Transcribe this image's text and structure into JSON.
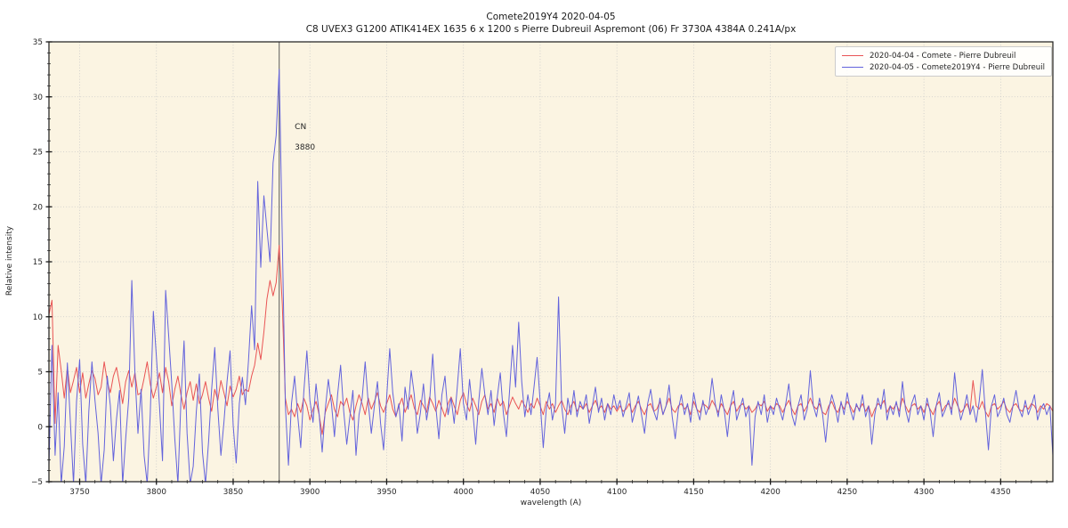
{
  "chart_data": {
    "type": "line",
    "title": "Comete2019Y4 2020-04-05",
    "subtitle": "C8 UVEX3 G1200 ATIK414EX 1635 6 x 1200 s Pierre Dubreuil Aspremont (06) Fr 3730A 4384A 0.241A/px",
    "xlabel": "wavelength (A)",
    "ylabel": "Relative intensity",
    "xlim": [
      3730,
      4384
    ],
    "ylim": [
      -5,
      35
    ],
    "xticks": {
      "values": [
        3750,
        3800,
        3850,
        3900,
        3950,
        4000,
        4050,
        4100,
        4150,
        4200,
        4250,
        4300,
        4350
      ],
      "labels": [
        "3750",
        "3800",
        "3850",
        "3900",
        "3950",
        "4000",
        "4050",
        "4100",
        "4150",
        "4200",
        "4250",
        "4300",
        "4350"
      ],
      "minor_step": 10
    },
    "yticks": {
      "values": [
        -5,
        0,
        5,
        10,
        15,
        20,
        25,
        30,
        35
      ],
      "labels": [
        "−5",
        "0",
        "5",
        "10",
        "15",
        "20",
        "25",
        "30",
        "35"
      ],
      "minor_step": 1
    },
    "grid": true,
    "grid_style": "dotted",
    "colors": {
      "plot_background": "#fbf4e2",
      "grid": "#c9c9c9",
      "spine": "#1a1a1a",
      "annotation_line": "#5a5a5a",
      "tick_label": "#262626"
    },
    "annotation": {
      "line1": "CN",
      "line2": "3880",
      "x": 3880,
      "y_data": 28.6
    },
    "legend": {
      "position": "top-right",
      "entries": [
        {
          "label": "2020-04-04 - Comete - Pierre Dubreuil",
          "color": "#e95454"
        },
        {
          "label": "2020-04-05 - Comete2019Y4 - Pierre Dubreuil",
          "color": "#6363dc"
        }
      ]
    },
    "series": [
      {
        "name": "2020-04-04 - Comete - Pierre Dubreuil",
        "color": "#e95454",
        "x_start": 3730,
        "x_step": 2,
        "values": [
          10.2,
          11.5,
          0.3,
          7.4,
          5.1,
          2.6,
          5.4,
          3.1,
          4.2,
          5.4,
          3.1,
          4.9,
          2.6,
          3.9,
          5.1,
          4.4,
          2.9,
          3.6,
          5.9,
          4.1,
          3.1,
          4.6,
          5.4,
          3.9,
          2.1,
          4.1,
          5.1,
          3.6,
          4.9,
          2.9,
          3.1,
          4.4,
          5.9,
          3.9,
          2.6,
          3.6,
          4.9,
          3.1,
          5.4,
          4.1,
          1.9,
          3.4,
          4.6,
          2.9,
          1.6,
          3.1,
          4.1,
          2.4,
          3.9,
          2.1,
          2.9,
          4.1,
          2.6,
          1.4,
          3.4,
          2.4,
          4.2,
          3.1,
          1.9,
          3.7,
          2.7,
          3.4,
          4.6,
          2.9,
          3.4,
          3.2,
          4.6,
          5.6,
          7.6,
          6.1,
          8.6,
          11.6,
          13.3,
          11.9,
          13.1,
          16.5,
          11.1,
          2.6,
          1.1,
          1.6,
          0.9,
          2.1,
          1.3,
          2.6,
          1.9,
          0.6,
          1.6,
          2.3,
          1.1,
          -0.7,
          1.3,
          2.1,
          2.9,
          1.6,
          0.9,
          2.3,
          1.9,
          2.6,
          1.3,
          0.6,
          1.9,
          2.9,
          2.1,
          1.1,
          2.6,
          1.6,
          2.3,
          3.1,
          1.9,
          1.3,
          2.1,
          2.9,
          1.6,
          0.9,
          1.9,
          2.6,
          1.3,
          2.1,
          2.9,
          1.7,
          1.1,
          2.4,
          1.9,
          1.3,
          2.7,
          2.1,
          1.4,
          2.4,
          1.7,
          0.9,
          2.1,
          2.7,
          1.9,
          1.1,
          2.4,
          3.1,
          2.1,
          1.4,
          2.6,
          1.9,
          1.1,
          2.3,
          2.9,
          1.6,
          2.1,
          1.3,
          2.6,
          1.9,
          2.3,
          1.1,
          1.9,
          2.7,
          2.1,
          1.6,
          2.4,
          1.9,
          1.3,
          2.1,
          1.7,
          2.6,
          1.9,
          1.1,
          2.3,
          1.6,
          2.1,
          1.3,
          1.9,
          2.4,
          1.6,
          1.1,
          1.9,
          2.3,
          1.4,
          1.9,
          1.6,
          2.1,
          1.3,
          1.9,
          2.4,
          1.6,
          1.9,
          1.3,
          2.1,
          1.6,
          1.9,
          1.4,
          1.9,
          1.4,
          1.6,
          2.1,
          1.3,
          1.9,
          2.3,
          1.6,
          1.1,
          1.9,
          2.1,
          1.4,
          1.6,
          2.3,
          1.1,
          1.9,
          2.6,
          1.6,
          1.3,
          1.9,
          2.1,
          1.6,
          1.9,
          1.1,
          2.3,
          1.6,
          1.3,
          2.1,
          1.9,
          1.6,
          2.4,
          1.9,
          1.3,
          2.1,
          1.6,
          1.1,
          1.9,
          2.3,
          1.4,
          1.9,
          2.1,
          1.6,
          1.9,
          1.3,
          1.6,
          2.1,
          1.9,
          2.3,
          1.4,
          1.9,
          1.6,
          2.1,
          1.9,
          1.3,
          1.9,
          2.4,
          1.6,
          1.1,
          1.9,
          2.1,
          1.4,
          1.9,
          2.6,
          1.9,
          1.6,
          2.1,
          1.3,
          1.1,
          1.9,
          2.3,
          1.6,
          1.3,
          2.1,
          1.6,
          2.3,
          1.9,
          1.3,
          1.9,
          1.6,
          2.1,
          1.4,
          1.9,
          0.9,
          1.6,
          2.1,
          1.9,
          2.4,
          1.3,
          1.9,
          1.6,
          2.1,
          1.4,
          2.6,
          1.9,
          1.3,
          1.9,
          2.1,
          1.6,
          1.9,
          1.3,
          2.1,
          1.6,
          1.1,
          1.9,
          2.3,
          1.4,
          1.9,
          2.1,
          1.6,
          2.6,
          1.9,
          1.3,
          1.6,
          2.1,
          1.4,
          4.2,
          1.9,
          1.6,
          2.3,
          1.4,
          0.9,
          1.9,
          2.1,
          1.6,
          1.9,
          2.3,
          1.6,
          1.3,
          1.9,
          2.1,
          1.6,
          1.4,
          1.9,
          1.6,
          2.1,
          1.9,
          1.3,
          1.9,
          1.6,
          2.1,
          1.9,
          1.4
        ]
      },
      {
        "name": "2020-04-05 - Comete2019Y4 - Pierre Dubreuil",
        "color": "#6363dc",
        "x_start": 3730,
        "x_step": 2,
        "values": [
          -3.5,
          7.4,
          -2.6,
          3.1,
          -5.2,
          -1.8,
          5.8,
          0.4,
          -5.2,
          2.3,
          6.1,
          -1.6,
          -5.2,
          1.4,
          5.9,
          2.4,
          -0.6,
          -5.2,
          -2.1,
          4.6,
          1.9,
          -3.1,
          0.7,
          3.3,
          -5.2,
          -1.1,
          2.6,
          13.3,
          4.9,
          -0.6,
          3.4,
          -2.6,
          -5.2,
          1.1,
          10.5,
          6.4,
          1.9,
          -3.1,
          12.4,
          8.3,
          3.9,
          -1.1,
          -5.2,
          2.4,
          7.8,
          -0.6,
          -5.2,
          -3.6,
          1.4,
          4.8,
          -2.3,
          -5.2,
          -1.3,
          3.4,
          7.2,
          1.7,
          -2.6,
          0.4,
          4.1,
          6.9,
          0.1,
          -3.3,
          2.1,
          4.5,
          2.0,
          6.0,
          11.0,
          7.0,
          22.3,
          14.5,
          21.0,
          18.0,
          15.0,
          24.0,
          26.5,
          32.5,
          17.0,
          2.0,
          -3.5,
          2.1,
          4.6,
          1.1,
          -1.9,
          3.1,
          6.9,
          2.4,
          0.4,
          3.9,
          1.1,
          -2.3,
          1.6,
          4.3,
          2.1,
          -0.9,
          2.9,
          5.6,
          1.4,
          -1.6,
          0.9,
          3.3,
          -2.6,
          1.1,
          2.6,
          5.9,
          2.1,
          -0.6,
          1.9,
          4.1,
          0.3,
          -2.1,
          2.6,
          7.1,
          3.1,
          0.9,
          2.1,
          -1.3,
          3.6,
          1.6,
          5.1,
          2.9,
          -0.6,
          1.3,
          3.9,
          0.6,
          2.3,
          6.6,
          1.9,
          -1.1,
          2.9,
          4.6,
          1.1,
          2.6,
          0.3,
          3.6,
          7.1,
          2.1,
          0.6,
          4.3,
          1.6,
          -1.6,
          2.3,
          5.3,
          2.9,
          1.1,
          3.3,
          0.1,
          2.6,
          4.9,
          1.3,
          -0.9,
          3.1,
          7.4,
          3.6,
          9.5,
          4.1,
          0.9,
          2.9,
          1.1,
          3.6,
          6.3,
          2.3,
          -1.9,
          1.6,
          3.1,
          0.6,
          2.1,
          11.8,
          1.9,
          -0.6,
          2.6,
          1.1,
          3.3,
          0.9,
          2.3,
          1.6,
          2.9,
          0.3,
          1.9,
          3.6,
          1.3,
          2.6,
          0.6,
          2.1,
          1.1,
          2.9,
          1.6,
          2.4,
          0.9,
          1.9,
          3.1,
          0.4,
          1.6,
          2.8,
          1.1,
          -0.6,
          2.1,
          3.4,
          1.4,
          0.6,
          2.6,
          1.1,
          1.9,
          3.8,
          0.9,
          -1.1,
          1.6,
          2.9,
          1.1,
          2.1,
          0.4,
          3.1,
          1.6,
          0.6,
          2.4,
          1.1,
          1.9,
          4.4,
          2.1,
          0.9,
          2.9,
          1.4,
          -0.9,
          1.9,
          3.3,
          0.6,
          1.6,
          2.6,
          0.9,
          1.9,
          -3.5,
          0.9,
          2.3,
          1.1,
          2.9,
          0.4,
          1.9,
          1.1,
          2.6,
          1.6,
          0.6,
          2.1,
          3.9,
          1.1,
          0.1,
          1.9,
          2.9,
          0.6,
          1.6,
          5.1,
          1.9,
          0.9,
          2.6,
          1.1,
          -1.4,
          1.6,
          2.9,
          1.9,
          0.4,
          2.3,
          1.1,
          3.1,
          1.6,
          0.6,
          2.1,
          1.4,
          2.9,
          0.9,
          1.9,
          -1.6,
          1.1,
          2.6,
          1.6,
          3.4,
          0.6,
          1.9,
          1.1,
          2.3,
          0.9,
          4.1,
          1.6,
          0.4,
          2.1,
          2.9,
          1.1,
          1.9,
          0.6,
          2.6,
          1.4,
          -0.9,
          1.9,
          3.1,
          0.9,
          1.6,
          2.4,
          1.1,
          4.9,
          2.1,
          0.6,
          1.6,
          2.9,
          1.1,
          1.9,
          0.4,
          2.3,
          5.2,
          1.4,
          -2.1,
          1.9,
          2.9,
          0.9,
          1.6,
          2.6,
          1.1,
          0.4,
          1.9,
          3.3,
          1.6,
          0.9,
          2.4,
          1.1,
          1.9,
          2.9,
          0.6,
          1.6,
          2.1,
          1.1,
          1.9,
          -2.6
        ]
      }
    ]
  }
}
